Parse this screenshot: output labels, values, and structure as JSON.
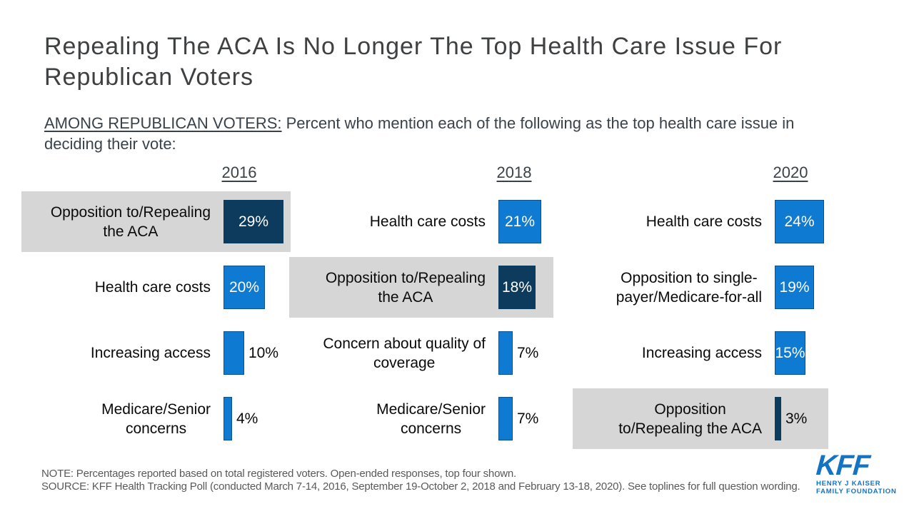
{
  "slide": {
    "title": "Repealing The ACA Is No Longer The Top Health Care Issue For Republican Voters",
    "subtitle": {
      "prefix": "AMONG REPUBLICAN VOTERS:",
      "line1_rest": " Percent who mention each of the following as the top health care issue in",
      "line2": "deciding their vote:"
    },
    "note": "NOTE: Percentages reported based on total registered voters. Open-ended responses, top four shown.",
    "source": "SOURCE: KFF Health Tracking Poll (conducted March 7-14, 2016, September 19-October 2, 2018 and February 13-18, 2020). See toplines for full question wording.",
    "logo": {
      "acronym": "KFF",
      "line1": "HENRY J KAISER",
      "line2": "FAMILY FOUNDATION"
    }
  },
  "chart_data": {
    "type": "bar",
    "orientation": "horizontal",
    "unit": "%",
    "value_range": [
      0,
      30
    ],
    "legend": "none",
    "grid": false,
    "columns": [
      {
        "year": "2016",
        "items": [
          {
            "label": "Opposition to/Repealing the ACA",
            "lines": [
              "Opposition to/Repealing",
              "the ACA"
            ],
            "value": 29,
            "emphasized": true
          },
          {
            "label": "Health care costs",
            "lines": [
              "Health care costs"
            ],
            "value": 20,
            "emphasized": false
          },
          {
            "label": "Increasing access",
            "lines": [
              "Increasing access"
            ],
            "value": 10,
            "emphasized": false
          },
          {
            "label": "Medicare/Senior concerns",
            "lines": [
              "Medicare/Senior",
              "concerns"
            ],
            "value": 4,
            "emphasized": false
          }
        ]
      },
      {
        "year": "2018",
        "items": [
          {
            "label": "Health care costs",
            "lines": [
              "Health care costs"
            ],
            "value": 21,
            "emphasized": false
          },
          {
            "label": "Opposition to/Repealing the ACA",
            "lines": [
              "Opposition to/Repealing",
              "the ACA"
            ],
            "value": 18,
            "emphasized": true
          },
          {
            "label": "Concern about quality of coverage",
            "lines": [
              "Concern about quality of",
              "coverage"
            ],
            "value": 7,
            "emphasized": false
          },
          {
            "label": "Medicare/Senior concerns",
            "lines": [
              "Medicare/Senior",
              "concerns"
            ],
            "value": 7,
            "emphasized": false
          }
        ]
      },
      {
        "year": "2020",
        "items": [
          {
            "label": "Health care costs",
            "lines": [
              "Health care costs"
            ],
            "value": 24,
            "emphasized": false
          },
          {
            "label": "Opposition to single-payer/Medicare-for-all",
            "lines": [
              "Opposition to single-",
              "payer/Medicare-for-all"
            ],
            "value": 19,
            "emphasized": false
          },
          {
            "label": "Increasing access",
            "lines": [
              "Increasing access"
            ],
            "value": 15,
            "emphasized": false
          },
          {
            "label": "Opposition to/Repealing the ACA",
            "lines": [
              "Opposition",
              "to/Repealing the ACA"
            ],
            "value": 3,
            "emphasized": true
          }
        ]
      }
    ]
  },
  "colors": {
    "bar_blue": "#0f7ad1",
    "bar_blue_border": "#0b5191",
    "bar_navy": "#0d3b5d",
    "highlight_bg": "#d6d6d6",
    "title_text": "#3f4042",
    "subtitle_text": "#394249",
    "label_text": "#0a0a0a",
    "note_text": "#58595b",
    "logo_blue": "#1373c5",
    "value_in_bar_text": "#ffffff"
  }
}
